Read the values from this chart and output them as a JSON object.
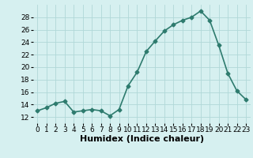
{
  "x": [
    0,
    1,
    2,
    3,
    4,
    5,
    6,
    7,
    8,
    9,
    10,
    11,
    12,
    13,
    14,
    15,
    16,
    17,
    18,
    19,
    20,
    21,
    22,
    23
  ],
  "y": [
    13,
    13.5,
    14.2,
    14.5,
    12.8,
    13,
    13.2,
    13,
    12.2,
    13.2,
    17,
    19.2,
    22.5,
    24.2,
    25.8,
    26.8,
    27.5,
    28,
    29,
    27.5,
    23.5,
    19,
    16.2,
    14.8
  ],
  "line_color": "#2e7b6e",
  "marker": "D",
  "marker_size": 2.5,
  "bg_color": "#d6f0f0",
  "grid_color": "#b0d8d8",
  "xlabel": "Humidex (Indice chaleur)",
  "xlabel_fontsize": 8,
  "xlim": [
    -0.5,
    23.5
  ],
  "ylim": [
    11,
    30
  ],
  "yticks": [
    12,
    14,
    16,
    18,
    20,
    22,
    24,
    26,
    28
  ],
  "xticks": [
    0,
    1,
    2,
    3,
    4,
    5,
    6,
    7,
    8,
    9,
    10,
    11,
    12,
    13,
    14,
    15,
    16,
    17,
    18,
    19,
    20,
    21,
    22,
    23
  ],
  "tick_fontsize": 6.5,
  "line_width": 1.2
}
